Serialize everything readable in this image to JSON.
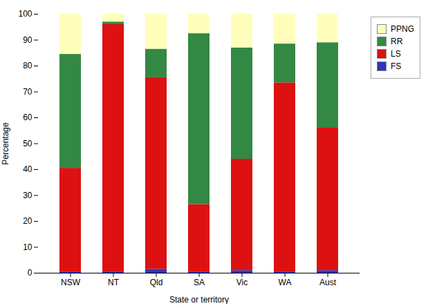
{
  "chart_data": {
    "type": "bar",
    "stacked": true,
    "legend": "right",
    "xlabel": "State or territory",
    "ylabel": "Percentage",
    "categories": [
      "NSW",
      "NT",
      "Qld",
      "SA",
      "Vic",
      "WA",
      "Aust"
    ],
    "series": [
      {
        "name": "FS",
        "color": "#3333bb",
        "values": [
          0.5,
          0.5,
          1.5,
          0.5,
          1.0,
          0.5,
          1.0
        ]
      },
      {
        "name": "LS",
        "color": "#dd1111",
        "values": [
          40,
          95.5,
          74,
          26,
          43,
          73,
          55
        ]
      },
      {
        "name": "RR",
        "color": "#338844",
        "values": [
          44,
          1,
          11,
          66,
          43,
          15,
          33
        ]
      },
      {
        "name": "PPNG",
        "color": "#ffffbb",
        "values": [
          15.5,
          3,
          13.5,
          7.5,
          13,
          11.5,
          11
        ]
      }
    ],
    "ylim": [
      0,
      100
    ],
    "yticks": [
      0,
      10,
      20,
      30,
      40,
      50,
      60,
      70,
      80,
      90,
      100
    ],
    "grid": false
  }
}
